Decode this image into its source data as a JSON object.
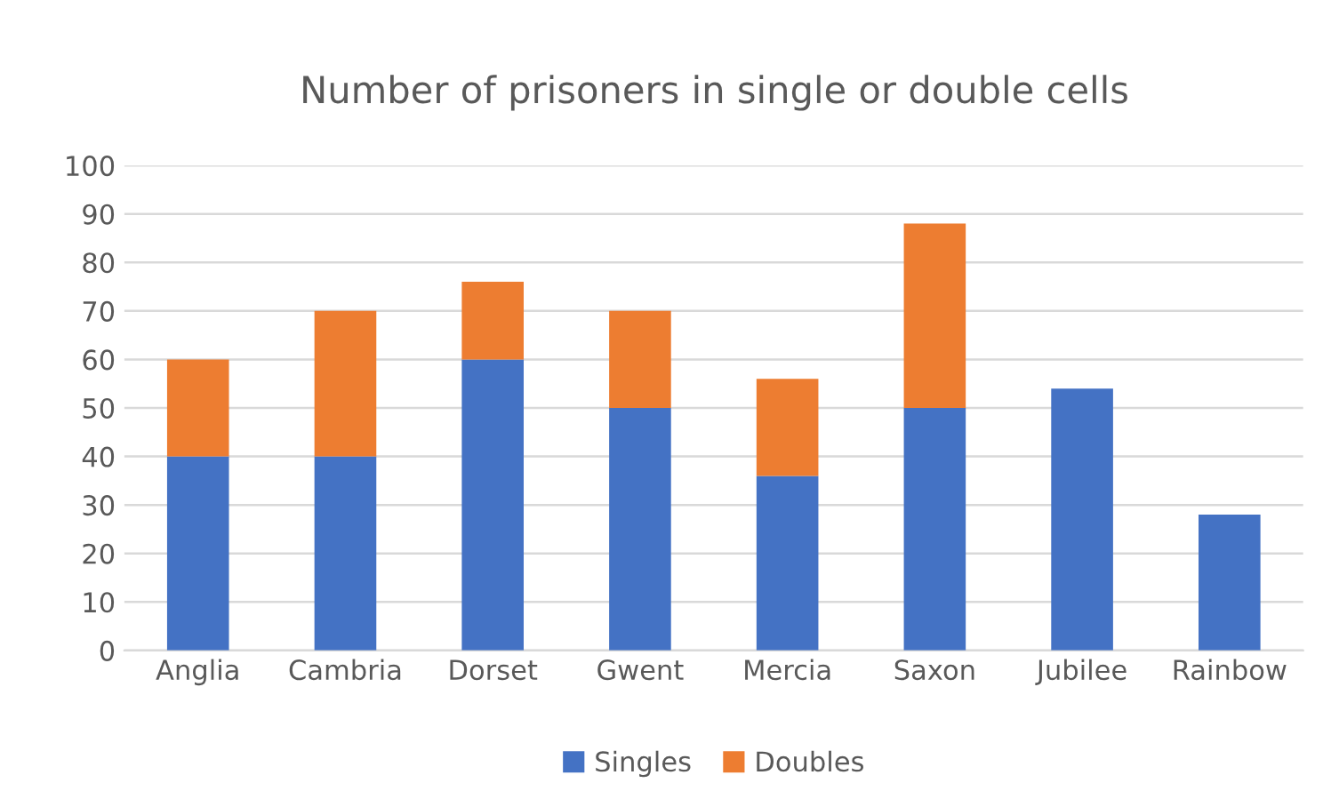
{
  "chart_data": {
    "type": "bar",
    "title": "Number of prisoners in single or double cells",
    "categories": [
      "Anglia",
      "Cambria",
      "Dorset",
      "Gwent",
      "Mercia",
      "Saxon",
      "Jubilee",
      "Rainbow"
    ],
    "stacked": true,
    "series": [
      {
        "name": "Singles",
        "color": "#4472c4",
        "values": [
          40,
          40,
          60,
          50,
          36,
          50,
          54,
          28
        ]
      },
      {
        "name": "Doubles",
        "color": "#ed7d31",
        "values": [
          20,
          30,
          16,
          20,
          20,
          38,
          null,
          null
        ]
      }
    ],
    "ylim": [
      0,
      100
    ],
    "yticks": [
      0,
      10,
      20,
      30,
      40,
      50,
      60,
      70,
      80,
      90,
      100
    ],
    "grid": "y",
    "legend": "bottom"
  }
}
